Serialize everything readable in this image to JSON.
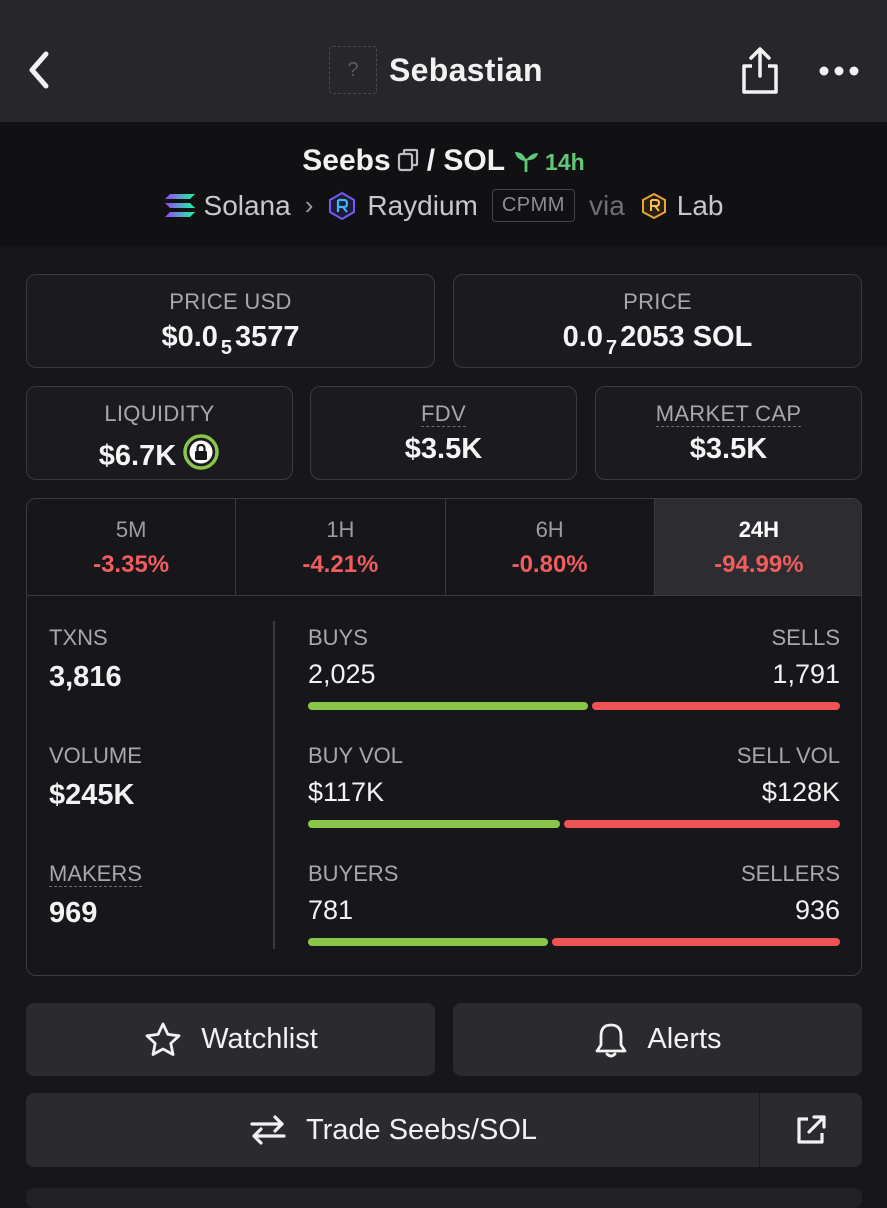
{
  "topbar": {
    "title": "Sebastian",
    "avatar_placeholder": "?",
    "icons": [
      "back-icon",
      "share-icon",
      "more-icon"
    ]
  },
  "pair": {
    "base": "Seebs",
    "separator": "/",
    "quote": "SOL",
    "age": "14h",
    "chain": "Solana",
    "dex": "Raydium",
    "pool_type": "CPMM",
    "via_label": "via",
    "launchpad": "Lab"
  },
  "stats": {
    "price_usd": {
      "label": "PRICE USD",
      "prefix": "$0.0",
      "zeros": "5",
      "digits": "3577"
    },
    "price_native": {
      "label": "PRICE",
      "prefix": "0.0",
      "zeros": "7",
      "digits": "2053 SOL"
    },
    "liquidity": {
      "label": "LIQUIDITY",
      "value": "$6.7K"
    },
    "fdv": {
      "label": "FDV",
      "value": "$3.5K"
    },
    "market_cap": {
      "label": "MARKET CAP",
      "value": "$3.5K"
    }
  },
  "timeframes": [
    {
      "label": "5M",
      "change": "-3.35%"
    },
    {
      "label": "1H",
      "change": "-4.21%"
    },
    {
      "label": "6H",
      "change": "-0.80%"
    },
    {
      "label": "24H",
      "change": "-94.99%",
      "active": true
    }
  ],
  "metrics": {
    "txns": {
      "label": "TXNS",
      "value": "3,816"
    },
    "volume": {
      "label": "VOLUME",
      "value": "$245K"
    },
    "makers": {
      "label": "MAKERS",
      "value": "969"
    }
  },
  "splits": {
    "buys": {
      "left_label": "BUYS",
      "right_label": "SELLS",
      "left_value": "2,025",
      "right_value": "1,791",
      "buy_ratio": 0.531
    },
    "vol": {
      "left_label": "BUY VOL",
      "right_label": "SELL VOL",
      "left_value": "$117K",
      "right_value": "$128K",
      "buy_ratio": 0.478
    },
    "makers": {
      "left_label": "BUYERS",
      "right_label": "SELLERS",
      "left_value": "781",
      "right_value": "936",
      "buy_ratio": 0.455
    }
  },
  "actions": {
    "watchlist": "Watchlist",
    "alerts": "Alerts",
    "trade": "Trade Seebs/SOL"
  },
  "colors": {
    "positive": "#8ac64a",
    "negative": "#ee5454",
    "age_green": "#61c87a"
  }
}
